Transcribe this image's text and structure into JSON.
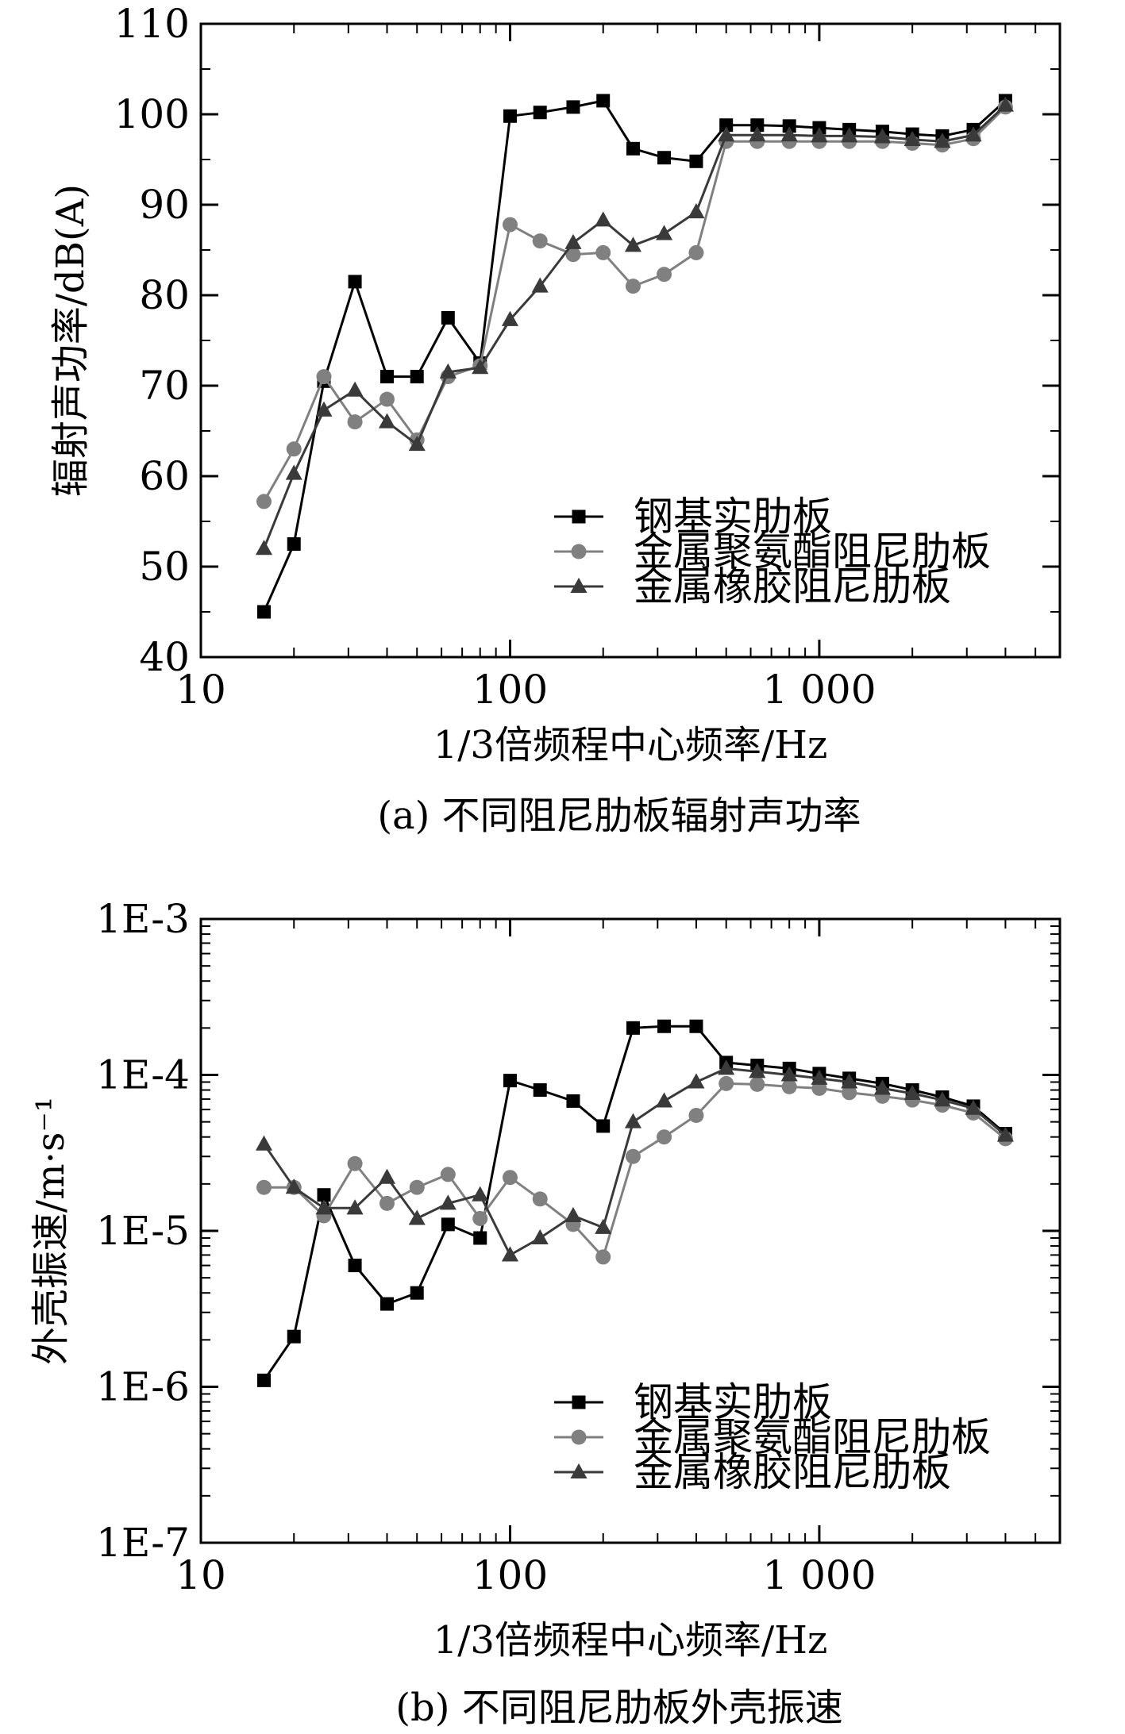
{
  "chart_data": [
    {
      "type": "line",
      "caption": "(a) 不同阻尼肋板辐射声功率",
      "xlabel": "1/3倍频程中心频率/Hz",
      "ylabel": "辐射声功率/dB(A)",
      "xscale": "log",
      "yscale": "linear",
      "xlim": [
        10,
        6000
      ],
      "ylim": [
        40,
        110
      ],
      "xticks": [
        "10",
        "100",
        "1 000"
      ],
      "yticks": [
        "40",
        "50",
        "60",
        "70",
        "80",
        "90",
        "100",
        "110"
      ],
      "legend_position": "lower-right",
      "x": [
        16,
        20,
        25,
        31.5,
        40,
        50,
        63,
        80,
        100,
        125,
        160,
        200,
        250,
        315,
        400,
        500,
        630,
        800,
        1000,
        1250,
        1600,
        2000,
        2500,
        3150,
        4000
      ],
      "series": [
        {
          "name": "钢基实肋板",
          "marker": "square",
          "color": "#000000",
          "values": [
            45,
            52.5,
            70.5,
            81.5,
            71,
            71,
            77.5,
            72.5,
            99.8,
            100.2,
            100.8,
            101.5,
            96.2,
            95.2,
            94.8,
            98.8,
            98.8,
            98.7,
            98.5,
            98.3,
            98.1,
            97.8,
            97.6,
            98.3,
            101.5
          ]
        },
        {
          "name": "金属聚氨酯阻尼肋板",
          "marker": "circle",
          "color": "#808080",
          "values": [
            57.2,
            63,
            71,
            66,
            68.5,
            64,
            71,
            72.2,
            87.8,
            86,
            84.5,
            84.7,
            81,
            82.3,
            84.7,
            97,
            97,
            97,
            97,
            97,
            97,
            96.8,
            96.6,
            97.3,
            100.8
          ]
        },
        {
          "name": "金属橡胶阻尼肋板",
          "marker": "triangle",
          "color": "#3a3a3a",
          "values": [
            52,
            60.3,
            67.3,
            69.5,
            66,
            63.5,
            71.5,
            72,
            77.3,
            81,
            85.8,
            88.3,
            85.5,
            86.8,
            89.2,
            97.7,
            97.7,
            97.7,
            97.6,
            97.6,
            97.5,
            97.2,
            97,
            97.7,
            101
          ]
        }
      ]
    },
    {
      "type": "line",
      "caption": "(b) 不同阻尼肋板外壳振速",
      "xlabel": "1/3倍频程中心频率/Hz",
      "ylabel": "外壳振速/m·s⁻¹",
      "xscale": "log",
      "yscale": "log",
      "xlim": [
        10,
        6000
      ],
      "ylim": [
        1e-07,
        0.001
      ],
      "xticks": [
        "10",
        "100",
        "1 000"
      ],
      "yticks": [
        "1E-7",
        "1E-6",
        "1E-5",
        "1E-4",
        "1E-3"
      ],
      "legend_position": "lower-right",
      "x": [
        16,
        20,
        25,
        31.5,
        40,
        50,
        63,
        80,
        100,
        125,
        160,
        200,
        250,
        315,
        400,
        500,
        630,
        800,
        1000,
        1250,
        1600,
        2000,
        2500,
        3150,
        4000
      ],
      "series": [
        {
          "name": "钢基实肋板",
          "marker": "square",
          "color": "#000000",
          "values": [
            1.1e-06,
            2.1e-06,
            1.7e-05,
            6e-06,
            3.4e-06,
            4e-06,
            1.1e-05,
            9e-06,
            9.2e-05,
            8e-05,
            6.8e-05,
            4.7e-05,
            0.0002,
            0.000205,
            0.000205,
            0.00012,
            0.000115,
            0.00011,
            0.000102,
            9.5e-05,
            8.8e-05,
            8e-05,
            7.2e-05,
            6.3e-05,
            4.2e-05
          ]
        },
        {
          "name": "金属聚氨酯阻尼肋板",
          "marker": "circle",
          "color": "#808080",
          "values": [
            1.9e-05,
            1.9e-05,
            1.25e-05,
            2.7e-05,
            1.5e-05,
            1.9e-05,
            2.3e-05,
            1.2e-05,
            2.2e-05,
            1.6e-05,
            1.1e-05,
            6.8e-06,
            3e-05,
            4e-05,
            5.5e-05,
            8.8e-05,
            8.7e-05,
            8.4e-05,
            8.2e-05,
            7.7e-05,
            7.3e-05,
            6.9e-05,
            6.4e-05,
            5.7e-05,
            3.9e-05
          ]
        },
        {
          "name": "金属橡胶阻尼肋板",
          "marker": "triangle",
          "color": "#3a3a3a",
          "values": [
            3.6e-05,
            1.9e-05,
            1.4e-05,
            1.4e-05,
            2.2e-05,
            1.2e-05,
            1.5e-05,
            1.7e-05,
            7e-06,
            9e-06,
            1.25e-05,
            1.05e-05,
            5e-05,
            6.8e-05,
            9e-05,
            0.00011,
            0.000105,
            0.0001,
            9.5e-05,
            9e-05,
            8.2e-05,
            7.6e-05,
            6.9e-05,
            6.1e-05,
            4.1e-05
          ]
        }
      ]
    }
  ]
}
